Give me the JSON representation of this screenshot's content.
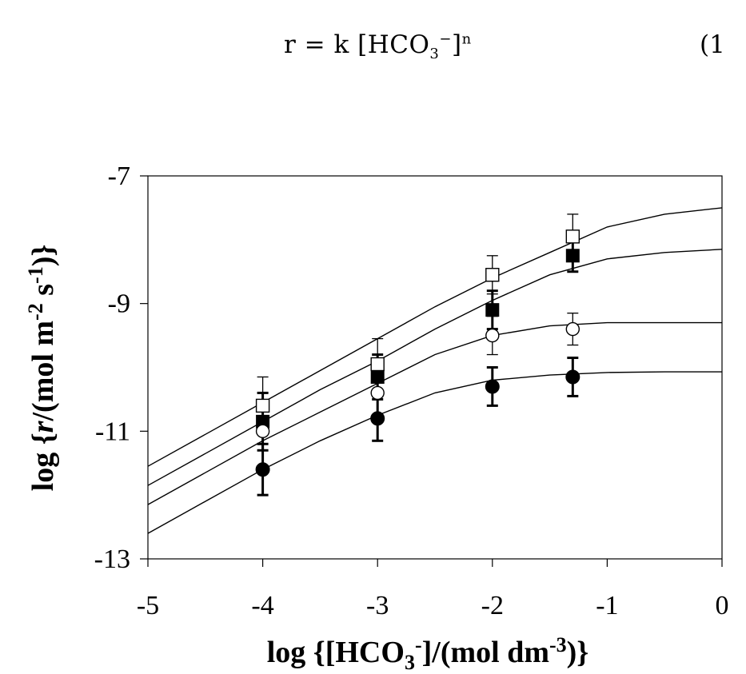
{
  "equation": {
    "lhs": "r = k [HCO",
    "sub": "3",
    "sup": "−",
    "close": "]",
    "exponent": "n",
    "number": "(1"
  },
  "chart_data": {
    "type": "scatter",
    "title": "",
    "xlabel": "log {[HCO3-]/(mol dm-3)}",
    "ylabel": "log {r/(mol m-2 s-1)}",
    "xlim": [
      -5,
      0
    ],
    "ylim": [
      -13,
      -7
    ],
    "x_ticks": [
      -5,
      -4,
      -3,
      -2,
      -1,
      0
    ],
    "x_tick_labels": [
      "-5",
      "-4",
      "-3",
      "-2",
      "-1",
      "0"
    ],
    "y_ticks": [
      -13,
      -11,
      -9,
      -7
    ],
    "y_tick_labels": [
      "-13",
      "-11",
      "-9",
      "-7"
    ],
    "grid": false,
    "series": [
      {
        "marker": "open-square",
        "points": [
          {
            "x": -4,
            "y": -10.6,
            "err": 0.45
          },
          {
            "x": -3,
            "y": -9.95,
            "err": 0.4
          },
          {
            "x": -2,
            "y": -8.55,
            "err": 0.3
          },
          {
            "x": -1.3,
            "y": -7.95,
            "err": 0.35
          }
        ],
        "fit": [
          [
            -5,
            -11.55
          ],
          [
            -4.5,
            -11.05
          ],
          [
            -4,
            -10.55
          ],
          [
            -3.5,
            -10.05
          ],
          [
            -3,
            -9.55
          ],
          [
            -2.5,
            -9.05
          ],
          [
            -2,
            -8.6
          ],
          [
            -1.5,
            -8.2
          ],
          [
            -1,
            -7.8
          ],
          [
            -0.5,
            -7.6
          ],
          [
            0,
            -7.5
          ]
        ]
      },
      {
        "marker": "filled-square",
        "points": [
          {
            "x": -4,
            "y": -10.85,
            "err": 0.45
          },
          {
            "x": -3,
            "y": -10.15,
            "err": 0.35
          },
          {
            "x": -2,
            "y": -9.1,
            "err": 0.3
          },
          {
            "x": -1.3,
            "y": -8.25,
            "err": 0.25
          }
        ],
        "fit": [
          [
            -5,
            -11.85
          ],
          [
            -4.5,
            -11.35
          ],
          [
            -4,
            -10.85
          ],
          [
            -3.5,
            -10.35
          ],
          [
            -3,
            -9.9
          ],
          [
            -2.5,
            -9.4
          ],
          [
            -2,
            -8.95
          ],
          [
            -1.5,
            -8.55
          ],
          [
            -1,
            -8.3
          ],
          [
            -0.5,
            -8.2
          ],
          [
            0,
            -8.15
          ]
        ]
      },
      {
        "marker": "open-circle",
        "points": [
          {
            "x": -4,
            "y": -11.0,
            "err": 0.6
          },
          {
            "x": -3,
            "y": -10.4,
            "err": 0.45
          },
          {
            "x": -2,
            "y": -9.5,
            "err": 0.3
          },
          {
            "x": -1.3,
            "y": -9.4,
            "err": 0.25
          }
        ],
        "fit": [
          [
            -5,
            -12.15
          ],
          [
            -4.5,
            -11.65
          ],
          [
            -4,
            -11.15
          ],
          [
            -3.5,
            -10.7
          ],
          [
            -3,
            -10.25
          ],
          [
            -2.5,
            -9.8
          ],
          [
            -2,
            -9.5
          ],
          [
            -1.5,
            -9.35
          ],
          [
            -1,
            -9.3
          ],
          [
            -0.5,
            -9.3
          ],
          [
            0,
            -9.3
          ]
        ]
      },
      {
        "marker": "filled-circle",
        "points": [
          {
            "x": -4,
            "y": -11.6,
            "err": 0.4
          },
          {
            "x": -3,
            "y": -10.8,
            "err": 0.35
          },
          {
            "x": -2,
            "y": -10.3,
            "err": 0.3
          },
          {
            "x": -1.3,
            "y": -10.15,
            "err": 0.3
          }
        ],
        "fit": [
          [
            -5,
            -12.6
          ],
          [
            -4.5,
            -12.1
          ],
          [
            -4,
            -11.6
          ],
          [
            -3.5,
            -11.15
          ],
          [
            -3,
            -10.75
          ],
          [
            -2.5,
            -10.4
          ],
          [
            -2,
            -10.2
          ],
          [
            -1.5,
            -10.12
          ],
          [
            -1,
            -10.08
          ],
          [
            -0.5,
            -10.07
          ],
          [
            0,
            -10.07
          ]
        ]
      }
    ]
  }
}
